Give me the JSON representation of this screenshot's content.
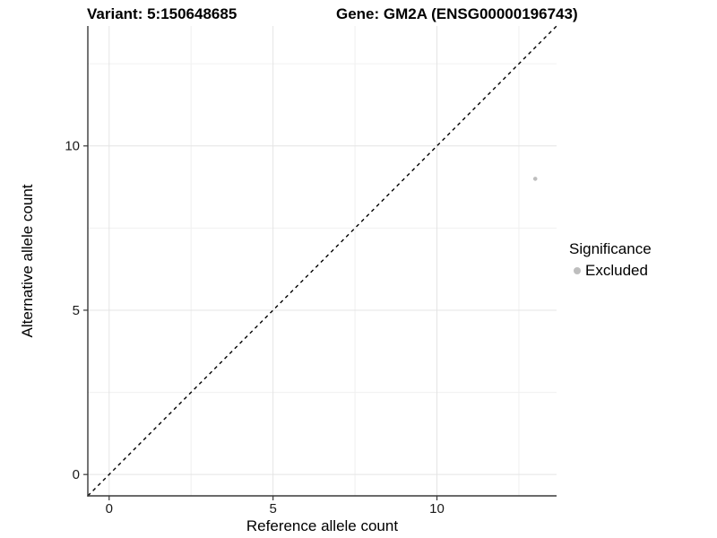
{
  "header": {
    "variant_title": "Variant: 5:150648685",
    "gene_title": "Gene: GM2A (ENSG00000196743)"
  },
  "legend": {
    "title": "Significance",
    "items": [
      {
        "label": "Excluded",
        "color": "#bebebe"
      }
    ]
  },
  "chart_data": {
    "type": "scatter",
    "title": "Variant: 5:150648685 / Gene: GM2A (ENSG00000196743)",
    "xlabel": "Reference allele count",
    "ylabel": "Alternative allele count",
    "xlim": [
      -0.65,
      13.65
    ],
    "ylim": [
      -0.65,
      13.65
    ],
    "x_ticks": [
      0,
      5,
      10
    ],
    "y_ticks": [
      0,
      5,
      10
    ],
    "x_minor_ticks": [
      2.5,
      7.5,
      12.5
    ],
    "y_minor_ticks": [
      2.5,
      7.5,
      12.5
    ],
    "grid": true,
    "legend_position": "right",
    "series": [
      {
        "name": "Excluded",
        "color": "#bebebe",
        "marker": "circle",
        "marker_radius": 2.3,
        "points": [
          {
            "x": 13,
            "y": 9
          }
        ]
      }
    ],
    "reference_line": {
      "slope": 1,
      "intercept": 0,
      "style": "dashed",
      "color": "#000000"
    }
  },
  "colors": {
    "background": "#ffffff",
    "axis_line": "#383838",
    "tick_mark": "#383838",
    "grid_major": "#e4e4e4",
    "grid_minor": "#f0f0f0"
  }
}
